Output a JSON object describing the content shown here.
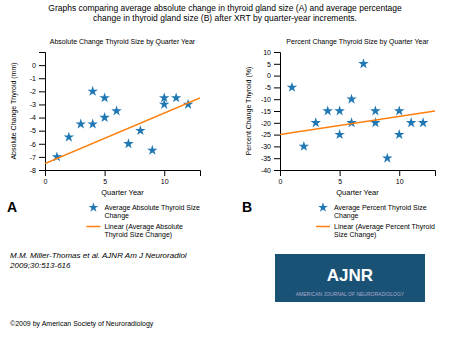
{
  "title": "Graphs comparing average absolute change in thyroid gland size (A) and average percentage\nchange in thyroid gland size (B) after XRT by quarter-year increments.",
  "annotations": [
    "M.M. Miller-Thomas et al. AJNR Am J Neuroradiol\n2009;30:513-616",
    "©2009 by American Society of Neuroradiology",
    "AJNR",
    "AMERICAN JOURNAL OF NEURORADIOLOGY"
  ],
  "color": "#1a5276",
  "chart_data": [
    {
      "type": "scatter",
      "title": "Absolute Change Thyroid Size by Quarter Year",
      "xlabel": "Quarter Year",
      "ylabel": "Absolute Change Thyroid (mm)",
      "xlim": [
        0,
        13
      ],
      "ylim": [
        -8,
        1
      ],
      "xticks": [
        0,
        5,
        10
      ],
      "yticks": [
        -8,
        -7,
        -6,
        -5,
        -4,
        -3,
        -2,
        -1,
        0
      ],
      "legend": "lower right",
      "annotations": [
        "A"
      ],
      "series": [
        {
          "name": "Average Absolute Thyroid Size\nChange",
          "type": "scatter",
          "marker": "star",
          "x": [
            1,
            2,
            3,
            4,
            4,
            5,
            5,
            6,
            7,
            8,
            9,
            10,
            10,
            11,
            12
          ],
          "values": [
            -7,
            -5.5,
            -4.5,
            -2,
            -4.5,
            -2.5,
            -4,
            -3.5,
            -6,
            -5,
            -6.5,
            -3,
            -2.5,
            -2.5,
            -3
          ]
        },
        {
          "name": "Linear (Average Absolute\nThyroid Size Change)",
          "type": "line",
          "x": [
            0,
            13
          ],
          "values": [
            -7.5,
            -2.5
          ]
        }
      ]
    },
    {
      "type": "scatter",
      "title": "Percent Change Thyroid Size by Quarter Year",
      "xlabel": "Quarter Year",
      "ylabel": "Percent Change Thyroid (%)",
      "xlim": [
        0,
        13
      ],
      "ylim": [
        -40,
        10
      ],
      "xticks": [
        0,
        5,
        10
      ],
      "yticks": [
        -40,
        -35,
        -30,
        -25,
        -20,
        -15,
        -10,
        -5,
        0,
        5,
        10
      ],
      "legend": "lower right",
      "annotations": [
        "B"
      ],
      "series": [
        {
          "name": "Average Percent Thyroid Size\nChange",
          "type": "scatter",
          "marker": "star",
          "x": [
            1,
            2,
            3,
            4,
            5,
            5,
            6,
            6,
            7,
            8,
            8,
            9,
            10,
            10,
            11,
            12
          ],
          "values": [
            -5,
            -30,
            -20,
            -15,
            -15,
            -25,
            -20,
            -10,
            5,
            -15,
            -20,
            -35,
            -25,
            -15,
            -20,
            -20
          ]
        },
        {
          "name": "Linear (Average Percent Thyroid\nSize Change)",
          "type": "line",
          "x": [
            0,
            13
          ],
          "values": [
            -25,
            -15
          ]
        }
      ]
    }
  ]
}
